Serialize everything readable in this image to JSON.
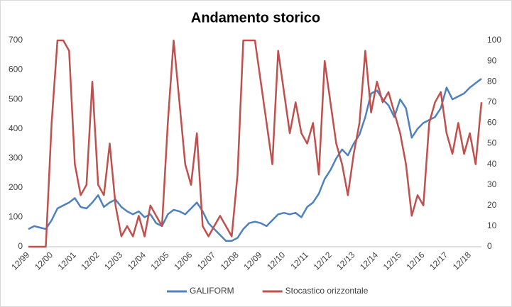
{
  "chart_data": {
    "type": "line",
    "title": "Andamento storico",
    "categories": [
      "12/99",
      null,
      null,
      null,
      "12/00",
      null,
      null,
      null,
      "12/01",
      null,
      null,
      null,
      "12/02",
      null,
      null,
      null,
      "12/03",
      null,
      null,
      null,
      "12/04",
      null,
      null,
      null,
      "12/05",
      null,
      null,
      null,
      "12/06",
      null,
      null,
      null,
      "12/07",
      null,
      null,
      null,
      "12/08",
      null,
      null,
      null,
      "12/09",
      null,
      null,
      null,
      "12/10",
      null,
      null,
      null,
      "12/11",
      null,
      null,
      null,
      "12/12",
      null,
      null,
      null,
      "12/13",
      null,
      null,
      null,
      "12/14",
      null,
      null,
      null,
      "12/15",
      null,
      null,
      null,
      "12/16",
      null,
      null,
      null,
      "12/17",
      null,
      null,
      null,
      "12/18",
      null,
      null
    ],
    "series": [
      {
        "name": "GALIFORM",
        "color": "#4f81bd",
        "values": [
          60,
          70,
          65,
          60,
          90,
          130,
          140,
          150,
          165,
          135,
          130,
          150,
          175,
          135,
          150,
          160,
          135,
          120,
          110,
          120,
          100,
          110,
          80,
          70,
          110,
          125,
          120,
          110,
          130,
          150,
          120,
          80,
          60,
          40,
          20,
          20,
          30,
          60,
          80,
          85,
          80,
          70,
          90,
          110,
          115,
          110,
          115,
          100,
          135,
          150,
          180,
          230,
          260,
          300,
          330,
          310,
          350,
          380,
          440,
          520,
          530,
          500,
          480,
          440,
          500,
          470,
          370,
          400,
          420,
          430,
          440,
          470,
          540,
          500,
          510,
          520,
          540,
          555,
          570
        ]
      },
      {
        "name": "Stocastico orizzontale",
        "color": "#c0504d",
        "axis": "y2",
        "values": [
          0,
          0,
          0,
          0,
          60,
          100,
          100,
          95,
          40,
          25,
          30,
          80,
          30,
          25,
          50,
          20,
          5,
          10,
          5,
          15,
          5,
          20,
          15,
          10,
          60,
          100,
          70,
          40,
          30,
          55,
          10,
          5,
          10,
          15,
          10,
          5,
          35,
          100,
          100,
          100,
          80,
          60,
          40,
          95,
          75,
          55,
          70,
          55,
          50,
          60,
          35,
          90,
          70,
          50,
          40,
          25,
          45,
          60,
          95,
          65,
          80,
          70,
          75,
          65,
          55,
          40,
          15,
          25,
          20,
          60,
          70,
          75,
          55,
          45,
          60,
          45,
          55,
          40,
          70
        ]
      }
    ],
    "ylim": [
      0,
      700
    ],
    "yticks": [
      0,
      100,
      200,
      300,
      400,
      500,
      600,
      700
    ],
    "y2lim": [
      0,
      100
    ],
    "y2ticks": [
      0,
      10,
      20,
      30,
      40,
      50,
      60,
      70,
      80,
      90,
      100
    ],
    "legend": "bottom",
    "grid": false
  }
}
